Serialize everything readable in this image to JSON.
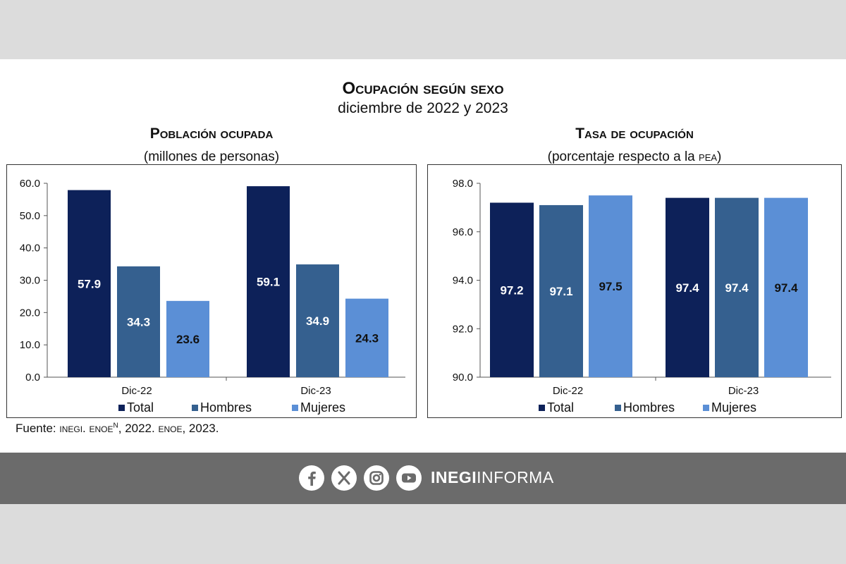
{
  "title_main": "Ocupación según sexo",
  "title_sub": "diciembre de 2022 y 2023",
  "source": {
    "prefix": "Fuente: ",
    "org": "inegi. enoe",
    "sup": "N",
    "rest": ", 2022. ",
    "org2": "enoe",
    "rest2": ", 2023."
  },
  "footer": {
    "brand_bold": "INEGI",
    "brand_rest": "INFORMA",
    "icons": [
      "facebook-icon",
      "x-icon",
      "instagram-icon",
      "youtube-icon"
    ]
  },
  "colors": {
    "Total": "#0d2159",
    "Hombres": "#35608f",
    "Mujeres": "#5b8fd6"
  },
  "chart_data": [
    {
      "type": "bar",
      "title": "Población ocupada",
      "subtitle": "(millones de personas)",
      "categories": [
        "Dic-22",
        "Dic-23"
      ],
      "series": [
        {
          "name": "Total",
          "values": [
            57.9,
            59.1
          ],
          "labels": [
            "57.9",
            "59.1"
          ]
        },
        {
          "name": "Hombres",
          "values": [
            34.3,
            34.9
          ],
          "labels": [
            "34.3",
            "34.9"
          ]
        },
        {
          "name": "Mujeres",
          "values": [
            23.6,
            24.3
          ],
          "labels": [
            "23.6",
            "24.3"
          ]
        }
      ],
      "ylim": [
        0,
        60
      ],
      "yticks": [
        "0.0",
        "10.0",
        "20.0",
        "30.0",
        "40.0",
        "50.0",
        "60.0"
      ],
      "legend": "bottom",
      "grid": false
    },
    {
      "type": "bar",
      "title": "Tasa de ocupación",
      "subtitle_pre": "(porcentaje respecto a la ",
      "subtitle_sc": "pea",
      "subtitle_post": ")",
      "categories": [
        "Dic-22",
        "Dic-23"
      ],
      "series": [
        {
          "name": "Total",
          "values": [
            97.2,
            97.4
          ],
          "labels": [
            "97.2",
            "97.4"
          ]
        },
        {
          "name": "Hombres",
          "values": [
            97.1,
            97.4
          ],
          "labels": [
            "97.1",
            "97.4"
          ]
        },
        {
          "name": "Mujeres",
          "values": [
            97.5,
            97.4
          ],
          "labels": [
            "97.5",
            "97.4"
          ]
        }
      ],
      "ylim": [
        90,
        98
      ],
      "yticks": [
        "90.0",
        "92.0",
        "94.0",
        "96.0",
        "98.0"
      ],
      "legend": "bottom",
      "grid": false
    }
  ]
}
